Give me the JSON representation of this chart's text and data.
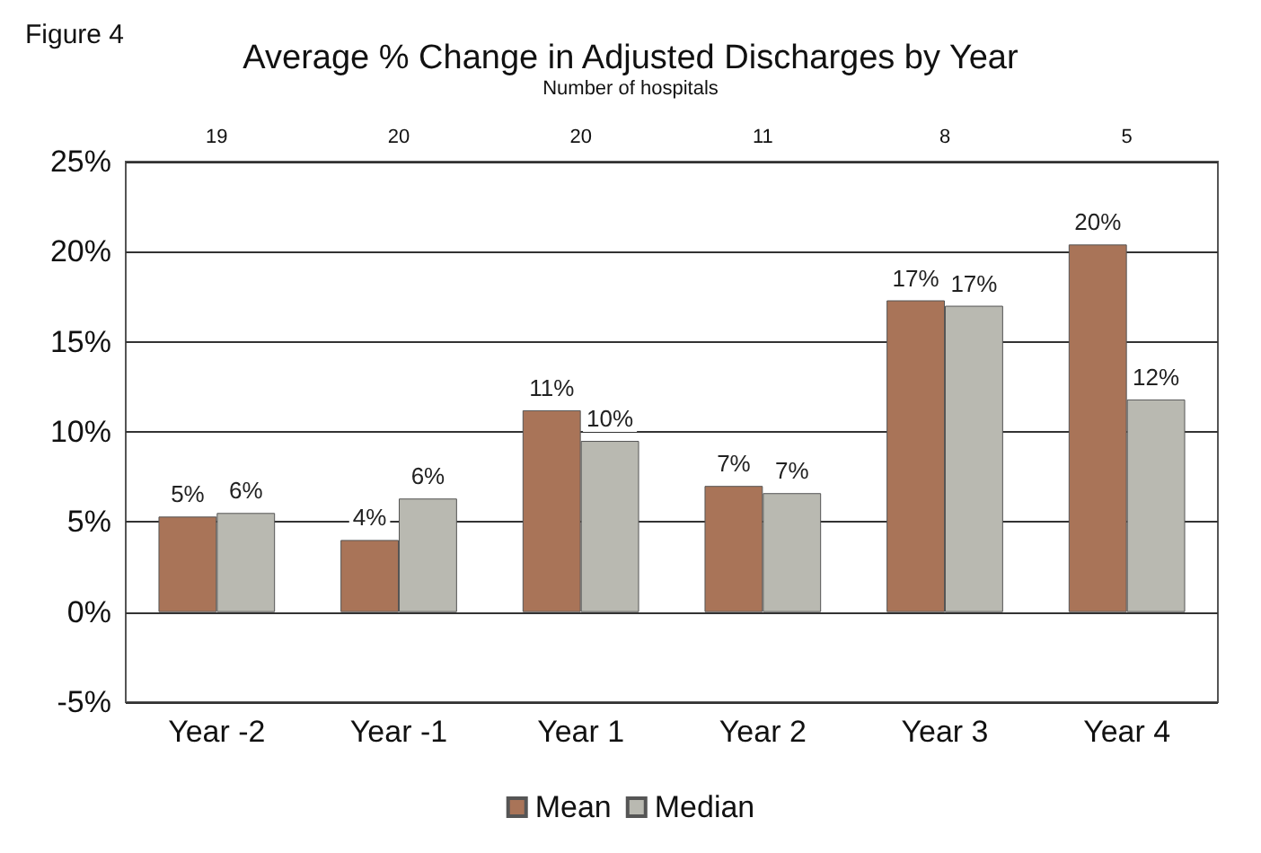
{
  "chart_data": {
    "type": "bar",
    "title": "Average % Change in Adjusted Discharges by Year",
    "subtitle": "Number of hospitals",
    "categories": [
      "Year -2",
      "Year -1",
      "Year 1",
      "Year 2",
      "Year 3",
      "Year 4"
    ],
    "series": [
      {
        "name": "Mean",
        "color": "#a97458",
        "values": [
          5.3,
          4.0,
          11.2,
          7.0,
          17.3,
          20.4
        ],
        "value_labels": [
          "5%",
          "4%",
          "11%",
          "7%",
          "17%",
          "20%"
        ]
      },
      {
        "name": "Median",
        "color": "#b9b9b1",
        "values": [
          5.5,
          6.3,
          9.5,
          6.6,
          17.0,
          11.8
        ],
        "value_labels": [
          "6%",
          "6%",
          "10%",
          "7%",
          "17%",
          "12%"
        ]
      }
    ],
    "ylim": [
      -5,
      25
    ],
    "yticks": [
      {
        "value": -5,
        "label": "-5%"
      },
      {
        "value": 0,
        "label": "0%"
      },
      {
        "value": 5,
        "label": "5%"
      },
      {
        "value": 10,
        "label": "10%"
      },
      {
        "value": 15,
        "label": "15%"
      },
      {
        "value": 20,
        "label": "20%"
      },
      {
        "value": 25,
        "label": "25%"
      }
    ],
    "grid": "y",
    "legend": "bottom",
    "annotations": [
      "Figure 4",
      "19",
      "20",
      "20",
      "11",
      "8",
      "5"
    ]
  }
}
